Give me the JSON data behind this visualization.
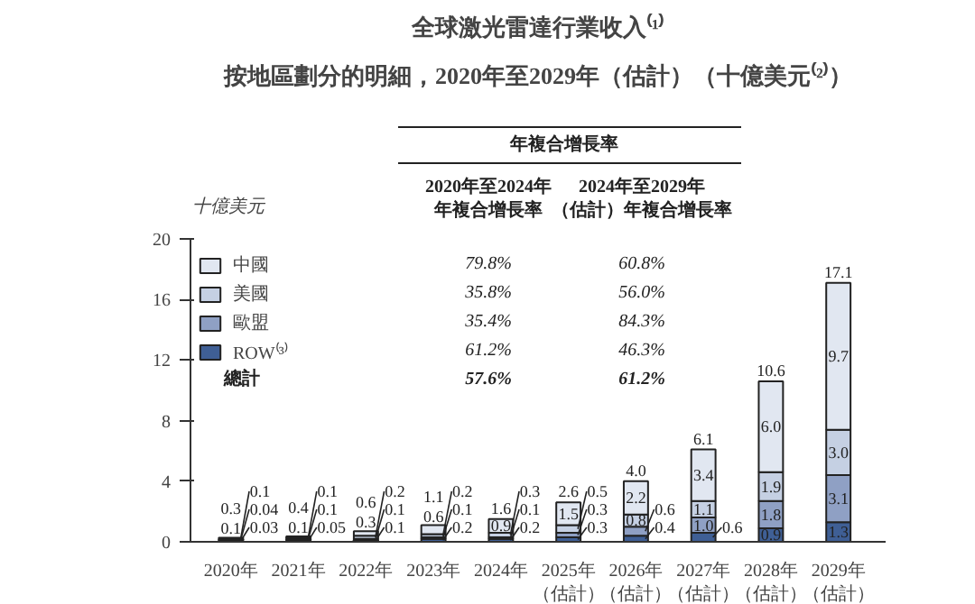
{
  "chart_data": {
    "type": "bar",
    "stacked": true,
    "title": "全球激光雷達行業收入⁽¹⁾",
    "subtitle": "按地區劃分的明細，2020年至2029年（估計）（十億美元⁽²⁾）",
    "ylabel": "十億美元",
    "categories": [
      "2020年",
      "2021年",
      "2022年",
      "2023年",
      "2024年",
      "2025年（估計）",
      "2026年（估計）",
      "2027年（估計）",
      "2028年（估計）",
      "2029年（估計）"
    ],
    "series": [
      {
        "name": "ROW⁽³⁾",
        "color": "#3f5f95",
        "values": [
          0.03,
          0.05,
          0.1,
          0.2,
          0.2,
          0.3,
          0.4,
          0.6,
          0.9,
          1.3
        ],
        "value_labels": [
          "0.03",
          "0.05",
          "0.1",
          "0.2",
          "0.2",
          "0.3",
          "0.4",
          "0.6",
          "0.9",
          "1.3"
        ]
      },
      {
        "name": "歐盟",
        "color": "#8fa0c4",
        "values": [
          0.04,
          0.1,
          0.1,
          0.1,
          0.1,
          0.3,
          0.6,
          1.0,
          1.8,
          3.1
        ],
        "value_labels": [
          "0.04",
          "0.1",
          "0.1",
          "0.1",
          "0.1",
          "0.3",
          "0.6",
          "1.0",
          "1.8",
          "3.1"
        ]
      },
      {
        "name": "美國",
        "color": "#c5d0e3",
        "values": [
          0.1,
          0.1,
          0.2,
          0.2,
          0.3,
          0.5,
          0.8,
          1.1,
          1.9,
          3.0
        ],
        "value_labels": [
          "0.1",
          "0.1",
          "0.2",
          "0.2",
          "0.3",
          "0.5",
          "0.8",
          "1.1",
          "1.9",
          "3.0"
        ]
      },
      {
        "name": "中國",
        "color": "#e1e7f1",
        "values": [
          0.1,
          0.1,
          0.3,
          0.6,
          0.9,
          1.5,
          2.2,
          3.4,
          6.0,
          9.7
        ],
        "value_labels": [
          "0.1",
          "0.1",
          "0.3",
          "0.6",
          "0.9",
          "1.5",
          "2.2",
          "3.4",
          "6.0",
          "9.7"
        ]
      }
    ],
    "totals": [
      "0.3",
      "0.4",
      "0.6",
      "1.1",
      "1.6",
      "2.6",
      "4.0",
      "6.1",
      "10.6",
      "17.1"
    ],
    "ylim": [
      0,
      20
    ],
    "yticks": [
      0,
      4,
      8,
      12,
      16,
      20
    ],
    "grid": false,
    "legend": "top left",
    "annotations": [
      "年複合增長率",
      "2020年至2024年年複合增長率",
      "2024年至2029年（估計）年複合增長率",
      "79.8%",
      "60.8%",
      "35.8%",
      "56.0%",
      "35.4%",
      "84.3%",
      "61.2%",
      "46.3%",
      "總計",
      "57.6%",
      "61.2%"
    ]
  }
}
